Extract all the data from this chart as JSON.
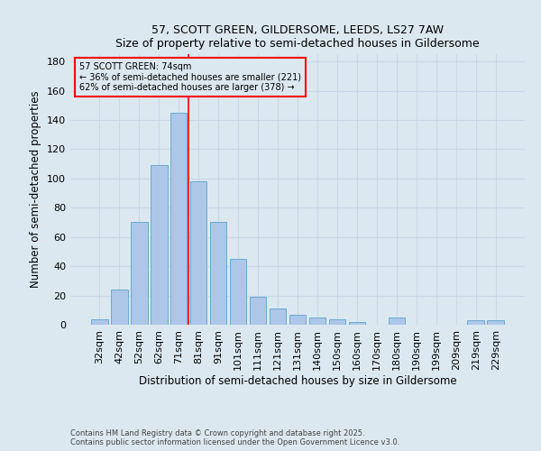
{
  "title": "57, SCOTT GREEN, GILDERSOME, LEEDS, LS27 7AW",
  "subtitle": "Size of property relative to semi-detached houses in Gildersome",
  "xlabel": "Distribution of semi-detached houses by size in Gildersome",
  "ylabel": "Number of semi-detached properties",
  "categories": [
    "32sqm",
    "42sqm",
    "52sqm",
    "62sqm",
    "71sqm",
    "81sqm",
    "91sqm",
    "101sqm",
    "111sqm",
    "121sqm",
    "131sqm",
    "140sqm",
    "150sqm",
    "160sqm",
    "170sqm",
    "180sqm",
    "190sqm",
    "199sqm",
    "209sqm",
    "219sqm",
    "229sqm"
  ],
  "values": [
    4,
    24,
    70,
    109,
    145,
    98,
    70,
    45,
    19,
    11,
    7,
    5,
    4,
    2,
    0,
    5,
    0,
    0,
    0,
    3,
    3
  ],
  "bar_color": "#aec6e8",
  "bar_edge_color": "#6aaad4",
  "grid_color": "#c8d8e8",
  "background_color": "#dce8f0",
  "vline_x": 4.5,
  "vline_color": "red",
  "annotation_title": "57 SCOTT GREEN: 74sqm",
  "annotation_line1": "← 36% of semi-detached houses are smaller (221)",
  "annotation_line2": "62% of semi-detached houses are larger (378) →",
  "ylim": [
    0,
    185
  ],
  "yticks": [
    0,
    20,
    40,
    60,
    80,
    100,
    120,
    140,
    160,
    180
  ],
  "footnote1": "Contains HM Land Registry data © Crown copyright and database right 2025.",
  "footnote2": "Contains public sector information licensed under the Open Government Licence v3.0."
}
